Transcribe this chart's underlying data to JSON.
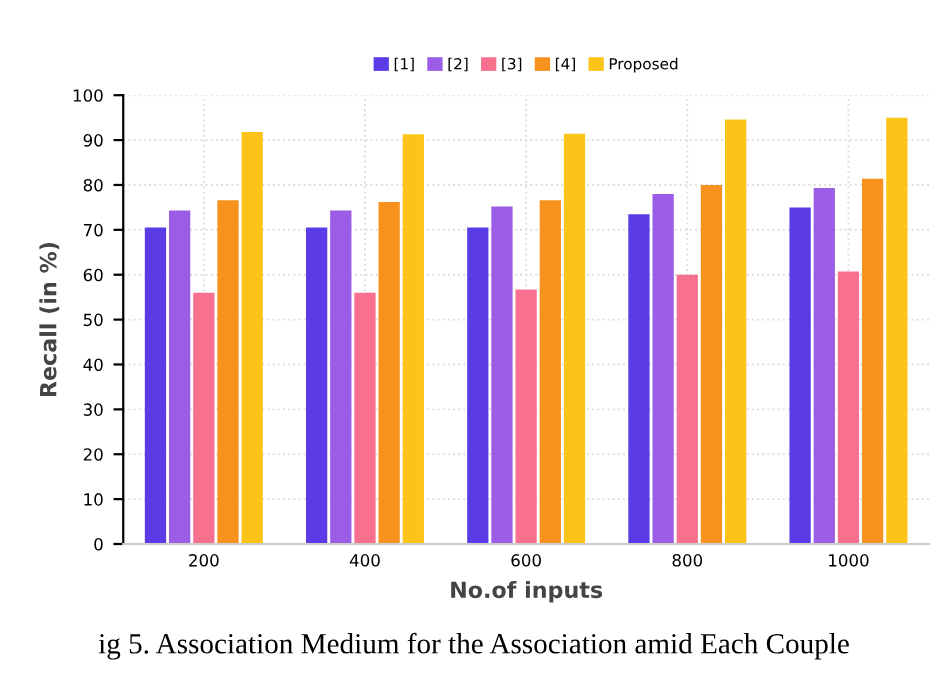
{
  "chart_data": {
    "type": "bar",
    "xlabel": "No.of inputs",
    "ylabel": "Recall (in %)",
    "categories": [
      "200",
      "400",
      "600",
      "800",
      "1000"
    ],
    "series": [
      {
        "name": "[1]",
        "color": "#5b3be6",
        "values": [
          70.5,
          70.5,
          70.5,
          73.5,
          75
        ]
      },
      {
        "name": "[2]",
        "color": "#9b5de5",
        "values": [
          74.3,
          74.3,
          75.2,
          78,
          79.3
        ]
      },
      {
        "name": "[3]",
        "color": "#f7718f",
        "values": [
          56,
          56,
          56.7,
          60,
          60.7
        ]
      },
      {
        "name": "[4]",
        "color": "#f7921e",
        "values": [
          76.6,
          76.2,
          76.6,
          80,
          81.4
        ]
      },
      {
        "name": "Proposed",
        "color": "#fcc419",
        "values": [
          91.8,
          91.3,
          91.4,
          94.6,
          95
        ]
      }
    ],
    "ylim": [
      0,
      100
    ],
    "yticks": [
      0,
      10,
      20,
      30,
      40,
      50,
      60,
      70,
      80,
      90,
      100
    ],
    "grid": true,
    "legend": "top",
    "annotations": [
      "ig 5. Association Medium for the Association amid Each Couple"
    ]
  }
}
